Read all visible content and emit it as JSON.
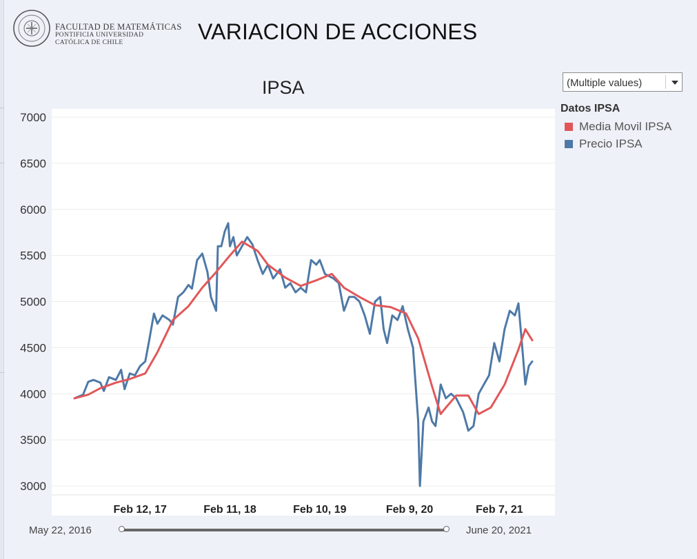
{
  "header": {
    "logo_line1": "FACULTAD DE MATEMÁTICAS",
    "logo_line2": "PONTIFICIA UNIVERSIDAD",
    "logo_line3": "CATÓLICA DE CHILE",
    "title": "VARIACION DE ACCIONES"
  },
  "filter": {
    "value": "(Multiple values)"
  },
  "legend": {
    "title": "Datos IPSA",
    "items": [
      {
        "label": "Media Movil IPSA",
        "color": "#e15759"
      },
      {
        "label": "Precio IPSA",
        "color": "#4e79a7"
      }
    ]
  },
  "range": {
    "start": "May 22, 2016",
    "end": "June 20, 2021"
  },
  "chart_data": {
    "type": "line",
    "title": "IPSA",
    "xlabel": "",
    "ylabel": "",
    "ylim": [
      2950,
      7000
    ],
    "y_ticks": [
      3000,
      3500,
      4000,
      4500,
      5000,
      5500,
      6000,
      6500,
      7000
    ],
    "x_ticks": [
      {
        "label": "Feb 12, 17",
        "date": "2017-02-12"
      },
      {
        "label": "Feb 11, 18",
        "date": "2018-02-11"
      },
      {
        "label": "Feb 10, 19",
        "date": "2019-02-10"
      },
      {
        "label": "Feb 9, 20",
        "date": "2020-02-09"
      },
      {
        "label": "Feb 7, 21",
        "date": "2021-02-07"
      }
    ],
    "x_range": [
      "2016-05-22",
      "2021-06-20"
    ],
    "grid": true,
    "series": [
      {
        "name": "Precio IPSA",
        "color": "#4e79a7",
        "points": [
          [
            "2016-05-22",
            3950
          ],
          [
            "2016-06-26",
            3990
          ],
          [
            "2016-07-17",
            4130
          ],
          [
            "2016-08-07",
            4150
          ],
          [
            "2016-09-04",
            4120
          ],
          [
            "2016-09-18",
            4030
          ],
          [
            "2016-10-09",
            4180
          ],
          [
            "2016-11-06",
            4150
          ],
          [
            "2016-11-27",
            4260
          ],
          [
            "2016-12-11",
            4050
          ],
          [
            "2017-01-01",
            4220
          ],
          [
            "2017-01-22",
            4200
          ],
          [
            "2017-02-12",
            4300
          ],
          [
            "2017-03-05",
            4350
          ],
          [
            "2017-03-19",
            4550
          ],
          [
            "2017-04-09",
            4870
          ],
          [
            "2017-04-23",
            4760
          ],
          [
            "2017-05-14",
            4850
          ],
          [
            "2017-06-11",
            4800
          ],
          [
            "2017-06-25",
            4750
          ],
          [
            "2017-07-16",
            5050
          ],
          [
            "2017-08-06",
            5100
          ],
          [
            "2017-08-27",
            5180
          ],
          [
            "2017-09-10",
            5140
          ],
          [
            "2017-10-01",
            5450
          ],
          [
            "2017-10-22",
            5520
          ],
          [
            "2017-11-12",
            5320
          ],
          [
            "2017-11-26",
            5050
          ],
          [
            "2017-12-17",
            4900
          ],
          [
            "2017-12-24",
            5600
          ],
          [
            "2018-01-07",
            5600
          ],
          [
            "2018-01-21",
            5760
          ],
          [
            "2018-02-04",
            5850
          ],
          [
            "2018-02-11",
            5600
          ],
          [
            "2018-02-25",
            5700
          ],
          [
            "2018-03-11",
            5500
          ],
          [
            "2018-04-01",
            5600
          ],
          [
            "2018-04-22",
            5700
          ],
          [
            "2018-05-13",
            5620
          ],
          [
            "2018-06-03",
            5450
          ],
          [
            "2018-06-24",
            5300
          ],
          [
            "2018-07-15",
            5400
          ],
          [
            "2018-08-05",
            5250
          ],
          [
            "2018-09-02",
            5350
          ],
          [
            "2018-09-23",
            5150
          ],
          [
            "2018-10-14",
            5200
          ],
          [
            "2018-11-04",
            5100
          ],
          [
            "2018-11-25",
            5150
          ],
          [
            "2018-12-16",
            5100
          ],
          [
            "2019-01-06",
            5450
          ],
          [
            "2019-01-27",
            5400
          ],
          [
            "2019-02-10",
            5450
          ],
          [
            "2019-03-03",
            5300
          ],
          [
            "2019-04-07",
            5250
          ],
          [
            "2019-04-28",
            5200
          ],
          [
            "2019-05-19",
            4900
          ],
          [
            "2019-06-09",
            5050
          ],
          [
            "2019-06-30",
            5050
          ],
          [
            "2019-07-21",
            5000
          ],
          [
            "2019-08-11",
            4850
          ],
          [
            "2019-09-01",
            4650
          ],
          [
            "2019-09-22",
            5000
          ],
          [
            "2019-10-13",
            5050
          ],
          [
            "2019-10-27",
            4700
          ],
          [
            "2019-11-10",
            4550
          ],
          [
            "2019-12-01",
            4850
          ],
          [
            "2019-12-22",
            4800
          ],
          [
            "2020-01-12",
            4950
          ],
          [
            "2020-02-02",
            4700
          ],
          [
            "2020-02-23",
            4500
          ],
          [
            "2020-03-15",
            3700
          ],
          [
            "2020-03-22",
            3000
          ],
          [
            "2020-04-05",
            3700
          ],
          [
            "2020-04-26",
            3850
          ],
          [
            "2020-05-10",
            3700
          ],
          [
            "2020-05-24",
            3650
          ],
          [
            "2020-06-14",
            4100
          ],
          [
            "2020-07-05",
            3950
          ],
          [
            "2020-07-26",
            4000
          ],
          [
            "2020-08-16",
            3950
          ],
          [
            "2020-09-13",
            3800
          ],
          [
            "2020-10-04",
            3600
          ],
          [
            "2020-10-25",
            3650
          ],
          [
            "2020-11-15",
            4000
          ],
          [
            "2020-12-06",
            4100
          ],
          [
            "2020-12-27",
            4200
          ],
          [
            "2021-01-17",
            4550
          ],
          [
            "2021-02-07",
            4350
          ],
          [
            "2021-02-28",
            4700
          ],
          [
            "2021-03-21",
            4900
          ],
          [
            "2021-04-11",
            4850
          ],
          [
            "2021-04-25",
            4980
          ],
          [
            "2021-05-09",
            4550
          ],
          [
            "2021-05-23",
            4100
          ],
          [
            "2021-06-06",
            4300
          ],
          [
            "2021-06-20",
            4350
          ]
        ]
      },
      {
        "name": "Media Movil IPSA",
        "color": "#e15759",
        "points": [
          [
            "2016-05-22",
            3950
          ],
          [
            "2016-07-17",
            3990
          ],
          [
            "2016-09-04",
            4060
          ],
          [
            "2016-11-06",
            4120
          ],
          [
            "2017-01-01",
            4160
          ],
          [
            "2017-03-05",
            4220
          ],
          [
            "2017-04-23",
            4450
          ],
          [
            "2017-06-25",
            4800
          ],
          [
            "2017-08-27",
            4950
          ],
          [
            "2017-10-22",
            5150
          ],
          [
            "2017-12-17",
            5320
          ],
          [
            "2018-02-11",
            5500
          ],
          [
            "2018-04-01",
            5650
          ],
          [
            "2018-06-03",
            5550
          ],
          [
            "2018-07-15",
            5400
          ],
          [
            "2018-09-23",
            5260
          ],
          [
            "2018-11-25",
            5170
          ],
          [
            "2019-01-27",
            5230
          ],
          [
            "2019-03-31",
            5300
          ],
          [
            "2019-05-19",
            5150
          ],
          [
            "2019-07-21",
            5050
          ],
          [
            "2019-09-22",
            4960
          ],
          [
            "2019-11-24",
            4940
          ],
          [
            "2020-01-26",
            4870
          ],
          [
            "2020-03-15",
            4600
          ],
          [
            "2020-05-10",
            4080
          ],
          [
            "2020-06-14",
            3780
          ],
          [
            "2020-07-05",
            3850
          ],
          [
            "2020-08-16",
            3980
          ],
          [
            "2020-10-04",
            3980
          ],
          [
            "2020-11-15",
            3780
          ],
          [
            "2021-01-03",
            3850
          ],
          [
            "2021-02-28",
            4100
          ],
          [
            "2021-04-25",
            4480
          ],
          [
            "2021-05-23",
            4700
          ],
          [
            "2021-06-20",
            4580
          ]
        ]
      }
    ]
  }
}
